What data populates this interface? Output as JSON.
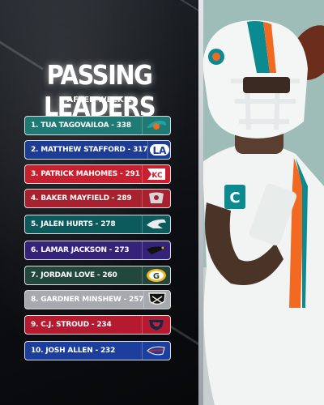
{
  "header": {
    "title": "PASSING LEADERS",
    "subtitle": "AFTER WEEK 1"
  },
  "leaders": [
    {
      "label": "1. TUA TAGOVAILOA - 338",
      "team_logo": "dolphins-icon",
      "color": "#1f7a75"
    },
    {
      "label": "2. MATTHEW STAFFORD - 317",
      "team_logo": "rams-icon",
      "color": "#1d3c96"
    },
    {
      "label": "3. PATRICK MAHOMES - 291",
      "team_logo": "chiefs-icon",
      "color": "#c8202f"
    },
    {
      "label": "4. BAKER MAYFIELD - 289",
      "team_logo": "buccaneers-icon",
      "color": "#a7212e"
    },
    {
      "label": "5. JALEN HURTS - 278",
      "team_logo": "eagles-icon",
      "color": "#0c5a5c"
    },
    {
      "label": "6. LAMAR JACKSON - 273",
      "team_logo": "ravens-icon",
      "color": "#35237a"
    },
    {
      "label": "7. JORDAN LOVE - 260",
      "team_logo": "packers-icon",
      "color": "#22473c"
    },
    {
      "label": "8. GARDNER MINSHEW - 257",
      "team_logo": "raiders-icon",
      "color": "#a6a9ad"
    },
    {
      "label": "9. C.J. STROUD - 234",
      "team_logo": "texans-icon",
      "color": "#b51a2e"
    },
    {
      "label": "10. JOSH ALLEN - 232",
      "team_logo": "bills-icon",
      "color": "#1c3e9c"
    }
  ]
}
